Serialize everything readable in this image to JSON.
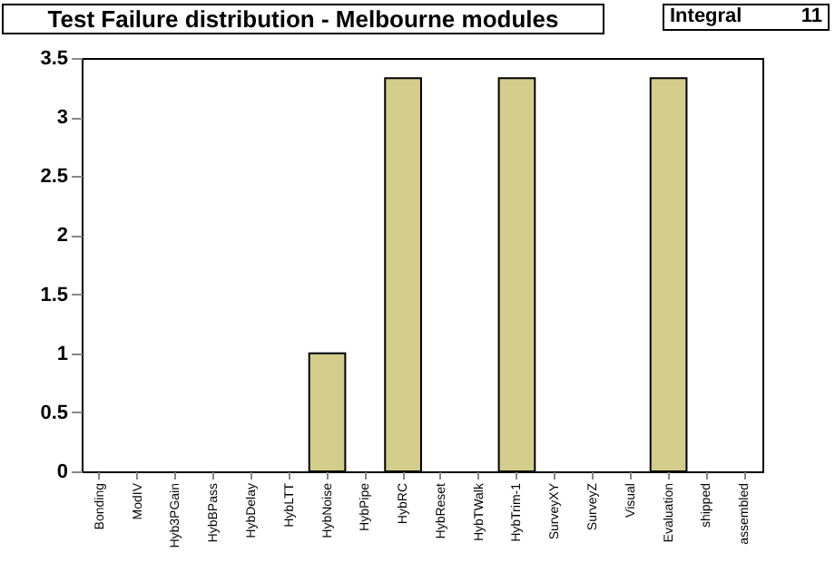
{
  "chart_data": {
    "type": "bar",
    "title": "Test Failure distribution - Melbourne modules",
    "annotations": [
      "Integral      11"
    ],
    "categories": [
      "Bonding",
      "ModIV",
      "Hyb3PGain",
      "HybBPass",
      "HybDelay",
      "HybLTT",
      "HybNoise",
      "HybPipe",
      "HybRC",
      "HybReset",
      "HybTWalk",
      "HybTrim-1",
      "SurveyXY",
      "SurveyZ",
      "Visual",
      "Evaluation",
      "shipped",
      "assembled"
    ],
    "values": [
      0,
      0,
      0,
      0,
      0,
      0,
      1,
      0,
      3.33,
      0,
      0,
      3.33,
      0,
      0,
      0,
      3.33,
      0,
      0
    ],
    "color": "#d4cc8a",
    "ylim": [
      0,
      3.5
    ],
    "yticks": [
      0,
      0.5,
      1,
      1.5,
      2,
      2.5,
      3,
      3.5
    ],
    "grid": false
  }
}
